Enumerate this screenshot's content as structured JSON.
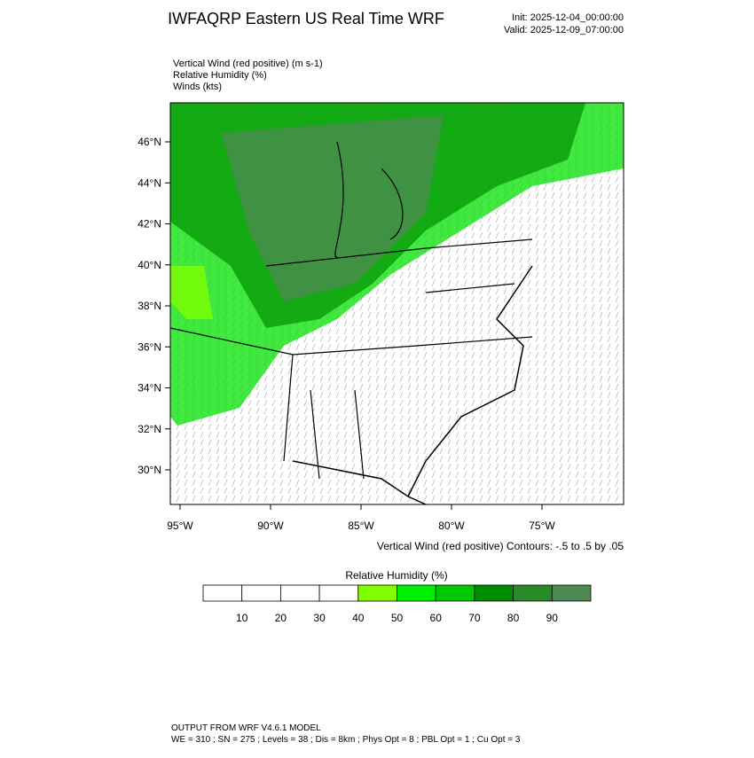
{
  "header": {
    "title": "IWFAQRP Eastern US Real Time WRF",
    "init": "Init: 2025-12-04_00:00:00",
    "valid": "Valid: 2025-12-09_07:00:00"
  },
  "fields": [
    "Vertical Wind (red positive)   (m s-1)",
    "Relative Humidity   (%)",
    "Winds   (kts)"
  ],
  "map": {
    "lat_labels": [
      "46°N",
      "44°N",
      "42°N",
      "40°N",
      "38°N",
      "36°N",
      "34°N",
      "32°N",
      "30°N"
    ],
    "lon_labels": [
      "95°W",
      "90°W",
      "85°W",
      "80°W",
      "75°W"
    ],
    "contour_note": "Vertical Wind (red positive) Contours: -.5 to .5 by .05"
  },
  "colorbar": {
    "title": "Relative Humidity  (%)",
    "ticks": [
      10,
      20,
      30,
      40,
      50,
      60,
      70,
      80,
      90
    ],
    "colors": [
      "#ffffff",
      "#ffffff",
      "#ffffff",
      "#ffffff",
      "#80ff00",
      "#00f000",
      "#00c800",
      "#008c00",
      "#2a8a2a",
      "#4f8a55"
    ]
  },
  "footer": {
    "line1": "OUTPUT FROM WRF V4.6.1 MODEL",
    "line2": "WE = 310 ; SN = 275 ; Levels = 38 ; Dis = 8km ; Phys Opt = 8 ; PBL Opt = 1 ; Cu Opt = 3"
  }
}
